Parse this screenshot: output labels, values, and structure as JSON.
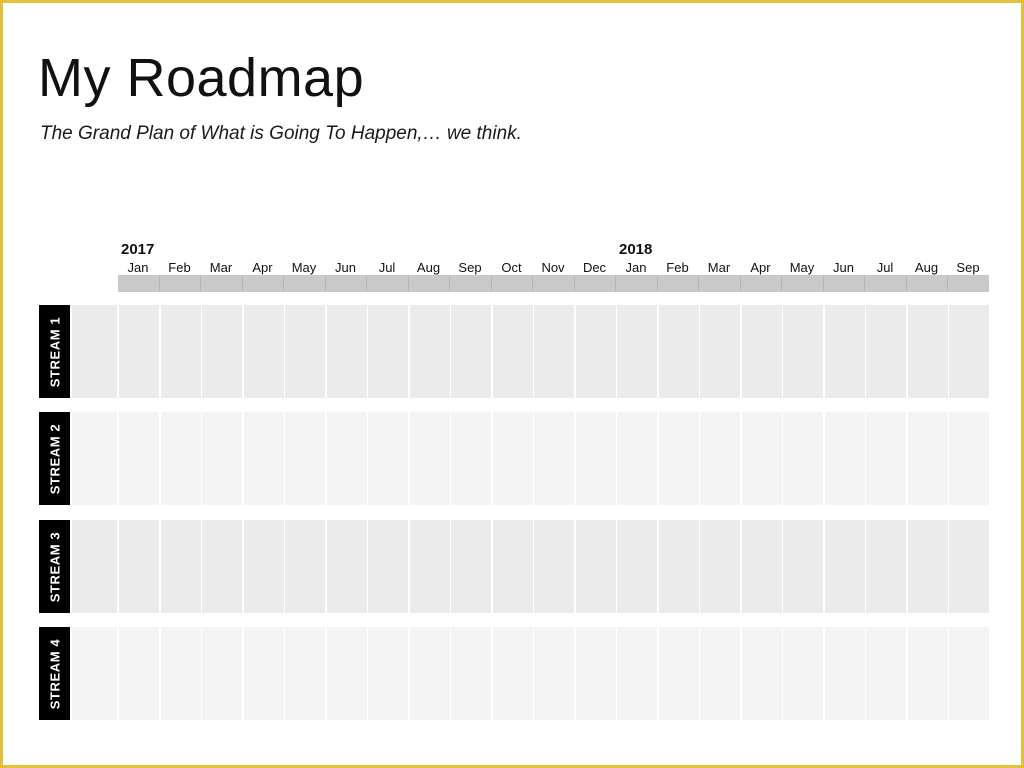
{
  "title": "My Roadmap",
  "subtitle": "The Grand Plan of What is Going To Happen,… we think.",
  "timeline": {
    "years": [
      {
        "label": "2017",
        "start_month_index": 0
      },
      {
        "label": "2018",
        "start_month_index": 12
      }
    ],
    "months": [
      "Jan",
      "Feb",
      "Mar",
      "Apr",
      "May",
      "Jun",
      "Jul",
      "Aug",
      "Sep",
      "Oct",
      "Nov",
      "Dec",
      "Jan",
      "Feb",
      "Mar",
      "Apr",
      "May",
      "Jun",
      "Jul",
      "Aug",
      "Sep"
    ]
  },
  "streams": [
    {
      "label": "STREAM 1",
      "lead_color": "#ebebeb",
      "cell_color": "#ebebeb"
    },
    {
      "label": "STREAM 2",
      "lead_color": "#f4f4f4",
      "cell_color": "#f4f4f4"
    },
    {
      "label": "STREAM 3",
      "lead_color": "#ebebeb",
      "cell_color": "#ebebeb"
    },
    {
      "label": "STREAM 4",
      "lead_color": "#f4f4f4",
      "cell_color": "#f4f4f4"
    }
  ],
  "colors": {
    "frame_border": "#e0c33a",
    "header_bar": "#c9c9c9",
    "label_background": "#000000",
    "label_text": "#ffffff"
  }
}
